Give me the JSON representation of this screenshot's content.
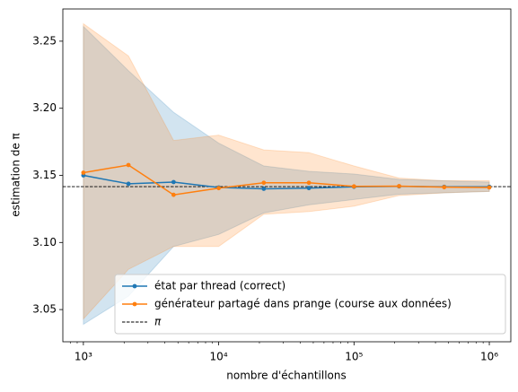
{
  "chart_data": {
    "type": "line",
    "xlabel": "nombre d'échantillons",
    "ylabel": "estimation de π",
    "xscale": "log",
    "xlim": [
      705,
      1442000
    ],
    "ylim": [
      3.026,
      3.274
    ],
    "xticks": [
      {
        "value": 1000,
        "label": "10³"
      },
      {
        "value": 10000,
        "label": "10⁴"
      },
      {
        "value": 100000,
        "label": "10⁵"
      },
      {
        "value": 1000000,
        "label": "10⁶"
      }
    ],
    "yticks": [
      3.05,
      {
        "value": 3.1,
        "label": "3.10"
      },
      3.15,
      {
        "value": 3.2,
        "label": "3.20"
      },
      3.25
    ],
    "legend": "lower right",
    "x": [
      1000,
      2154,
      4642,
      10000,
      21544,
      46416,
      100000,
      215443,
      464159,
      1000000
    ],
    "series": [
      {
        "name": "état par thread (correct)",
        "color": "#1f77b4",
        "values": [
          3.15,
          3.1437,
          3.145,
          3.141,
          3.14,
          3.1405,
          3.1415,
          3.1418,
          3.1415,
          3.1415
        ],
        "upper": [
          3.261,
          3.228,
          3.197,
          3.174,
          3.157,
          3.153,
          3.151,
          3.147,
          3.146,
          3.145
        ],
        "lower": [
          3.039,
          3.06,
          3.097,
          3.106,
          3.122,
          3.128,
          3.132,
          3.136,
          3.137,
          3.138
        ]
      },
      {
        "name": "générateur partagé dans prange (course aux données)",
        "color": "#ff7f0e",
        "values": [
          3.152,
          3.1577,
          3.1355,
          3.1405,
          3.1445,
          3.1445,
          3.1418,
          3.142,
          3.1412,
          3.141
        ],
        "upper": [
          3.263,
          3.239,
          3.176,
          3.18,
          3.169,
          3.167,
          3.157,
          3.148,
          3.146,
          3.146
        ],
        "lower": [
          3.043,
          3.08,
          3.097,
          3.097,
          3.121,
          3.123,
          3.127,
          3.135,
          3.137,
          3.138
        ]
      }
    ],
    "reference": {
      "name": "π",
      "value": 3.14159,
      "color": "#000000"
    }
  }
}
